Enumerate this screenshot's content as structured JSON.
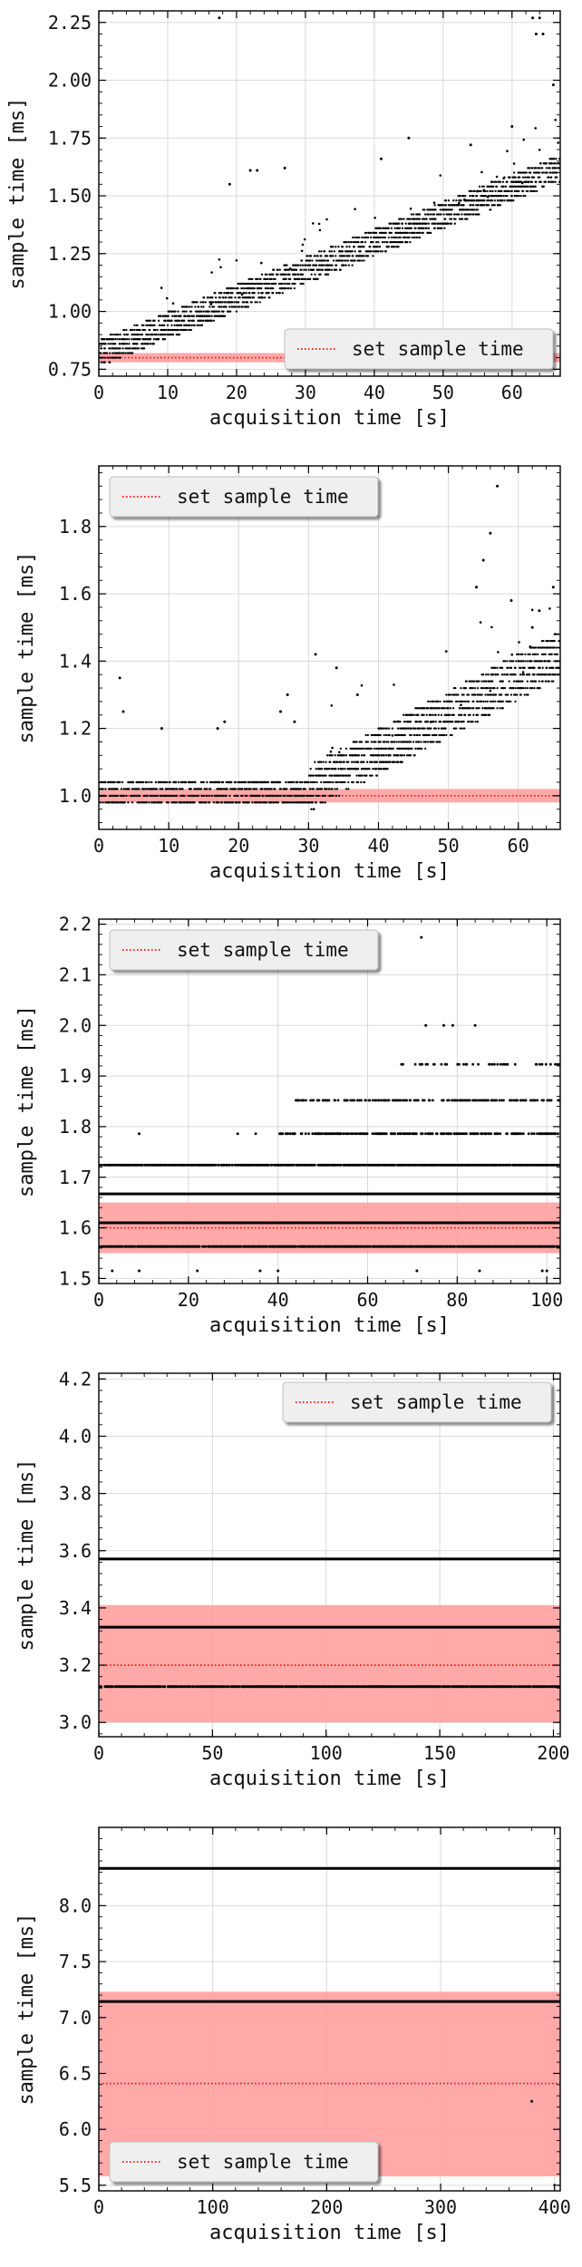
{
  "chart_data": [
    {
      "type": "scatter",
      "xlabel": "acquisition time [s]",
      "ylabel": "sample time [ms]",
      "xlim": [
        0,
        67
      ],
      "ylim": [
        0.72,
        2.3
      ],
      "xticks": [
        0,
        10,
        20,
        30,
        40,
        50,
        60
      ],
      "yticks": [
        0.75,
        1.0,
        1.25,
        1.5,
        1.75,
        2.0,
        2.25
      ],
      "ytick_labels": [
        "0.75",
        "1.00",
        "1.25",
        "1.50",
        "1.75",
        "2.00",
        "2.25"
      ],
      "grid": true,
      "legend": {
        "position": "lower-right",
        "label": "set sample time"
      },
      "reference": {
        "value": 0.8,
        "band": [
          0.78,
          0.82
        ],
        "color": "#ff0000",
        "band_color": "#ff9a9a"
      },
      "trend": {
        "start": [
          0,
          0.82
        ],
        "end": [
          67,
          1.62
        ],
        "spread": 0.05,
        "step": 0.02
      },
      "outliers": [
        [
          17.5,
          2.27
        ],
        [
          63,
          2.27
        ],
        [
          64,
          2.27
        ],
        [
          63.5,
          2.2
        ],
        [
          64.5,
          2.2
        ],
        [
          22,
          1.61
        ],
        [
          23,
          1.61
        ],
        [
          19,
          1.55
        ],
        [
          27,
          1.62
        ],
        [
          45,
          1.75
        ],
        [
          60,
          1.8
        ],
        [
          66,
          1.98
        ],
        [
          54,
          1.72
        ],
        [
          41,
          1.66
        ]
      ],
      "series": [
        {
          "name": "sample time",
          "color": "#000000"
        }
      ]
    },
    {
      "type": "scatter",
      "xlabel": "acquisition time [s]",
      "ylabel": "sample time [ms]",
      "xlim": [
        0,
        66
      ],
      "ylim": [
        0.9,
        1.98
      ],
      "xticks": [
        0,
        10,
        20,
        30,
        40,
        50,
        60
      ],
      "yticks": [
        1.0,
        1.2,
        1.4,
        1.6,
        1.8
      ],
      "ytick_labels": [
        "1.0",
        "1.2",
        "1.4",
        "1.6",
        "1.8"
      ],
      "grid": true,
      "legend": {
        "position": "upper-left",
        "label": "set sample time"
      },
      "reference": {
        "value": 1.0,
        "band": [
          0.98,
          1.02
        ],
        "color": "#ff0000",
        "band_color": "#ff9a9a"
      },
      "trend": {
        "start": [
          30,
          1.02
        ],
        "end": [
          66,
          1.42
        ],
        "spread": 0.06,
        "step": 0.02,
        "flat_until": 30,
        "flat_levels": [
          0.98,
          1.0,
          1.02,
          1.04
        ]
      },
      "outliers": [
        [
          3,
          1.35
        ],
        [
          3.5,
          1.25
        ],
        [
          9,
          1.2
        ],
        [
          17,
          1.2
        ],
        [
          18,
          1.22
        ],
        [
          26,
          1.25
        ],
        [
          28,
          1.22
        ],
        [
          27,
          1.3
        ],
        [
          31,
          1.42
        ],
        [
          34,
          1.38
        ],
        [
          37,
          1.3
        ],
        [
          55,
          1.7
        ],
        [
          56,
          1.78
        ],
        [
          57,
          1.92
        ],
        [
          54,
          1.62
        ],
        [
          59,
          1.58
        ],
        [
          63,
          1.55
        ],
        [
          65,
          1.62
        ],
        [
          62,
          1.5
        ]
      ],
      "series": [
        {
          "name": "sample time",
          "color": "#000000"
        }
      ]
    },
    {
      "type": "scatter",
      "xlabel": "acquisition time [s]",
      "ylabel": "sample time [ms]",
      "xlim": [
        0,
        103
      ],
      "ylim": [
        1.49,
        2.21
      ],
      "xticks": [
        0,
        20,
        40,
        60,
        80,
        100
      ],
      "yticks": [
        1.5,
        1.6,
        1.7,
        1.8,
        1.9,
        2.0,
        2.1,
        2.2
      ],
      "ytick_labels": [
        "1.5",
        "1.6",
        "1.7",
        "1.8",
        "1.9",
        "2.0",
        "2.1",
        "2.2"
      ],
      "grid": true,
      "legend": {
        "position": "upper-left",
        "label": "set sample time"
      },
      "reference": {
        "value": 1.6,
        "band": [
          1.55,
          1.65
        ],
        "color": "#ff0000",
        "band_color": "#ff9a9a"
      },
      "levels": [
        {
          "y": 1.667,
          "x": [
            0,
            103
          ],
          "density": "solid"
        },
        {
          "y": 1.61,
          "x": [
            0,
            103
          ],
          "density": "solid"
        },
        {
          "y": 1.563,
          "x": [
            0,
            103
          ],
          "density": "dense"
        },
        {
          "y": 1.724,
          "x": [
            0,
            103
          ],
          "density": "dense"
        },
        {
          "y": 1.786,
          "x": [
            40,
            103
          ],
          "density": "medium"
        },
        {
          "y": 1.852,
          "x": [
            44,
            103
          ],
          "density": "medium"
        },
        {
          "y": 1.923,
          "x": [
            66,
            103
          ],
          "density": "sparse"
        }
      ],
      "outliers": [
        [
          9,
          1.786
        ],
        [
          31,
          1.786
        ],
        [
          35,
          1.786
        ],
        [
          3,
          1.515
        ],
        [
          9,
          1.515
        ],
        [
          22,
          1.515
        ],
        [
          36,
          1.515
        ],
        [
          40,
          1.515
        ],
        [
          71,
          1.515
        ],
        [
          85,
          1.515
        ],
        [
          99,
          1.515
        ],
        [
          100,
          1.515
        ],
        [
          72,
          2.174
        ],
        [
          73,
          2.0
        ],
        [
          77,
          2.0
        ],
        [
          79,
          2.0
        ],
        [
          84,
          2.0
        ]
      ],
      "series": [
        {
          "name": "sample time",
          "color": "#000000"
        }
      ]
    },
    {
      "type": "scatter",
      "xlabel": "acquisition time [s]",
      "ylabel": "sample time [ms]",
      "xlim": [
        0,
        203
      ],
      "ylim": [
        2.95,
        4.22
      ],
      "xticks": [
        0,
        50,
        100,
        150,
        200
      ],
      "yticks": [
        3.0,
        3.2,
        3.4,
        3.6,
        3.8,
        4.0,
        4.2
      ],
      "ytick_labels": [
        "3.0",
        "3.2",
        "3.4",
        "3.6",
        "3.8",
        "4.0",
        "4.2"
      ],
      "grid": true,
      "legend": {
        "position": "upper-right",
        "label": "set sample time"
      },
      "reference": {
        "value": 3.2,
        "band": [
          3.0,
          3.41
        ],
        "color": "#ff0000",
        "band_color": "#ff9a9a"
      },
      "levels": [
        {
          "y": 3.571,
          "x": [
            0,
            203
          ],
          "density": "solid"
        },
        {
          "y": 3.333,
          "x": [
            0,
            203
          ],
          "density": "solid"
        },
        {
          "y": 3.125,
          "x": [
            0,
            203
          ],
          "density": "dense"
        }
      ],
      "outliers": [],
      "series": [
        {
          "name": "sample time",
          "color": "#000000"
        }
      ]
    },
    {
      "type": "scatter",
      "xlabel": "acquisition time [s]",
      "ylabel": "sample time [ms]",
      "xlim": [
        0,
        405
      ],
      "ylim": [
        5.45,
        8.7
      ],
      "xticks": [
        0,
        100,
        200,
        300,
        400
      ],
      "yticks": [
        5.5,
        6.0,
        6.5,
        7.0,
        7.5,
        8.0
      ],
      "ytick_labels": [
        "5.5",
        "6.0",
        "6.5",
        "7.0",
        "7.5",
        "8.0"
      ],
      "grid": true,
      "legend": {
        "position": "lower-left",
        "label": "set sample time"
      },
      "reference": {
        "value": 6.41,
        "band": [
          5.58,
          7.23
        ],
        "color": "#ff0000",
        "band_color": "#ff9a9a"
      },
      "levels": [
        {
          "y": 8.333,
          "x": [
            0,
            405
          ],
          "density": "solid"
        },
        {
          "y": 7.143,
          "x": [
            0,
            405
          ],
          "density": "solid"
        }
      ],
      "outliers": [
        [
          380,
          6.25
        ]
      ],
      "series": [
        {
          "name": "sample time",
          "color": "#000000"
        }
      ]
    }
  ]
}
